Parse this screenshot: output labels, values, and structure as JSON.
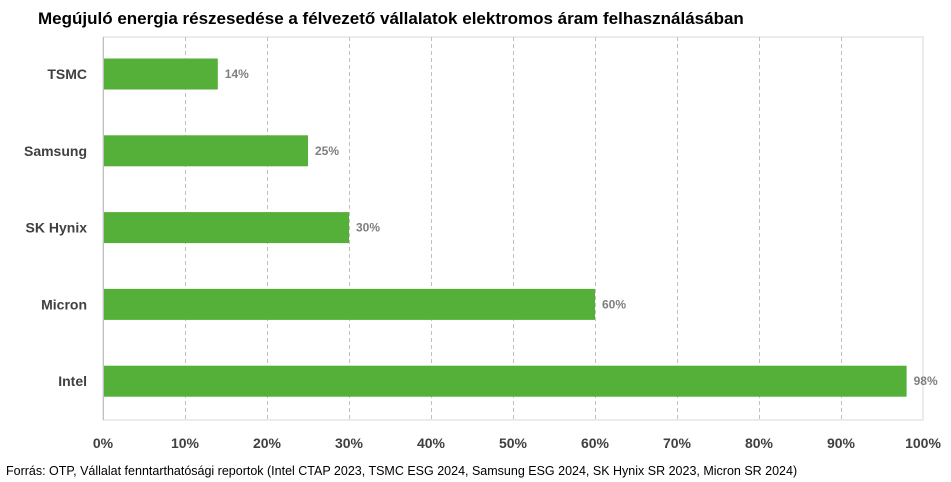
{
  "chart_data": {
    "type": "bar",
    "orientation": "horizontal",
    "title": "Megújuló energia részesedése a félvezető vállalatok elektromos áram felhasználásában",
    "categories": [
      "TSMC",
      "Samsung",
      "SK Hynix",
      "Micron",
      "Intel"
    ],
    "values": [
      14,
      25,
      30,
      60,
      98
    ],
    "data_labels": [
      "14%",
      "25%",
      "30%",
      "60%",
      "98%"
    ],
    "x_ticks": [
      0,
      10,
      20,
      30,
      40,
      50,
      60,
      70,
      80,
      90,
      100
    ],
    "x_tick_labels": [
      "0%",
      "10%",
      "20%",
      "30%",
      "40%",
      "50%",
      "60%",
      "70%",
      "80%",
      "90%",
      "100%"
    ],
    "xlim": [
      0,
      100
    ],
    "xlabel": "",
    "ylabel": "",
    "grid": "vertical dashed",
    "bar_color": "#55b03a"
  },
  "source": "Forrás: OTP, Vállalat fenntarthatósági reportok (Intel CTAP 2023, TSMC ESG 2024, Samsung ESG 2024, SK Hynix SR 2023, Micron SR 2024)"
}
